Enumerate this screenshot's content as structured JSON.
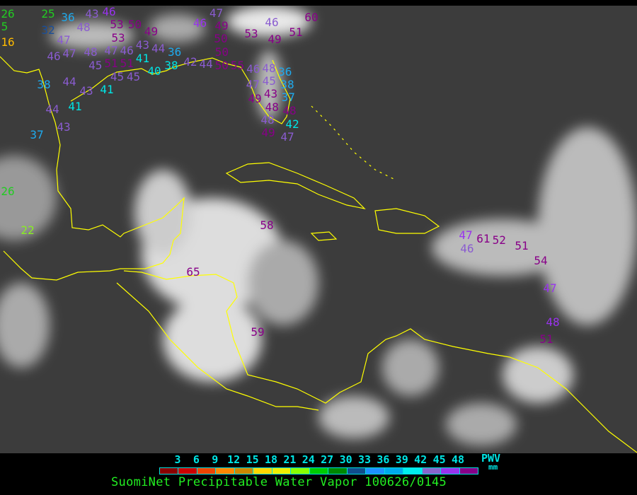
{
  "colors": {
    "background": "#3c3c3c",
    "coast": "#ffff00",
    "label_scale": "#00e5e5",
    "title": "#22ee22",
    "dark_purple": "#880088",
    "violet": "#8a5cd0",
    "purple": "#9933ee",
    "cyan": "#00e5e5",
    "light_blue": "#1eaaee",
    "dark_blue": "#1a4f9a",
    "green": "#22cc22",
    "yellow_green": "#88ee22",
    "orange": "#ffbb00"
  },
  "stations": [
    {
      "value": "26",
      "color": "green"
    },
    {
      "value": "25",
      "color": "green"
    },
    {
      "value": "36",
      "color": "light_blue"
    },
    {
      "value": "43",
      "color": "violet"
    },
    {
      "value": "46",
      "color": "purple"
    },
    {
      "value": "53",
      "color": "dark_purple"
    },
    {
      "value": "48",
      "color": "violet"
    },
    {
      "value": "53",
      "color": "dark_purple"
    },
    {
      "value": "50",
      "color": "dark_purple"
    },
    {
      "value": "32",
      "color": "dark_blue"
    },
    {
      "value": "5",
      "color": "green"
    },
    {
      "value": "16",
      "color": "orange"
    },
    {
      "value": "47",
      "color": "violet"
    },
    {
      "value": "47",
      "color": "violet"
    },
    {
      "value": "46",
      "color": "violet"
    },
    {
      "value": "49",
      "color": "dark_purple"
    },
    {
      "value": "43",
      "color": "violet"
    },
    {
      "value": "44",
      "color": "violet"
    },
    {
      "value": "46",
      "color": "violet"
    },
    {
      "value": "47",
      "color": "violet"
    },
    {
      "value": "48",
      "color": "violet"
    },
    {
      "value": "51",
      "color": "dark_purple"
    },
    {
      "value": "51",
      "color": "dark_purple"
    },
    {
      "value": "41",
      "color": "cyan"
    },
    {
      "value": "36",
      "color": "light_blue"
    },
    {
      "value": "45",
      "color": "violet"
    },
    {
      "value": "45",
      "color": "violet"
    },
    {
      "value": "45",
      "color": "violet"
    },
    {
      "value": "40",
      "color": "cyan"
    },
    {
      "value": "38",
      "color": "cyan"
    },
    {
      "value": "42",
      "color": "violet"
    },
    {
      "value": "44",
      "color": "violet"
    },
    {
      "value": "50",
      "color": "dark_purple"
    },
    {
      "value": "55",
      "color": "dark_purple"
    },
    {
      "value": "46",
      "color": "violet"
    },
    {
      "value": "48",
      "color": "violet"
    },
    {
      "value": "36",
      "color": "light_blue"
    },
    {
      "value": "47",
      "color": "violet"
    },
    {
      "value": "45",
      "color": "violet"
    },
    {
      "value": "38",
      "color": "light_blue"
    },
    {
      "value": "38",
      "color": "light_blue"
    },
    {
      "value": "44",
      "color": "violet"
    },
    {
      "value": "43",
      "color": "violet"
    },
    {
      "value": "41",
      "color": "cyan"
    },
    {
      "value": "44",
      "color": "violet"
    },
    {
      "value": "41",
      "color": "cyan"
    },
    {
      "value": "43",
      "color": "violet"
    },
    {
      "value": "37",
      "color": "light_blue"
    },
    {
      "value": "46",
      "color": "purple"
    },
    {
      "value": "47",
      "color": "violet"
    },
    {
      "value": "49",
      "color": "dark_purple"
    },
    {
      "value": "50",
      "color": "dark_purple"
    },
    {
      "value": "50",
      "color": "dark_purple"
    },
    {
      "value": "53",
      "color": "dark_purple"
    },
    {
      "value": "46",
      "color": "violet"
    },
    {
      "value": "49",
      "color": "dark_purple"
    },
    {
      "value": "51",
      "color": "dark_purple"
    },
    {
      "value": "60",
      "color": "dark_purple"
    },
    {
      "value": "49",
      "color": "dark_purple"
    },
    {
      "value": "43",
      "color": "dark_purple"
    },
    {
      "value": "37",
      "color": "light_blue"
    },
    {
      "value": "48",
      "color": "dark_purple"
    },
    {
      "value": "48",
      "color": "dark_purple"
    },
    {
      "value": "48",
      "color": "violet"
    },
    {
      "value": "49",
      "color": "dark_purple"
    },
    {
      "value": "42",
      "color": "cyan"
    },
    {
      "value": "47",
      "color": "violet"
    },
    {
      "value": "26",
      "color": "green"
    },
    {
      "value": "22",
      "color": "yellow_green"
    },
    {
      "value": "58",
      "color": "dark_purple"
    },
    {
      "value": "65",
      "color": "dark_purple"
    },
    {
      "value": "59",
      "color": "dark_purple"
    },
    {
      "value": "47",
      "color": "purple"
    },
    {
      "value": "46",
      "color": "violet"
    },
    {
      "value": "61",
      "color": "dark_purple"
    },
    {
      "value": "52",
      "color": "dark_purple"
    },
    {
      "value": "51",
      "color": "dark_purple"
    },
    {
      "value": "54",
      "color": "dark_purple"
    },
    {
      "value": "47",
      "color": "purple"
    },
    {
      "value": "48",
      "color": "purple"
    },
    {
      "value": "51",
      "color": "dark_purple"
    }
  ],
  "legend": {
    "ticks": [
      "3",
      "6",
      "9",
      "12",
      "15",
      "18",
      "21",
      "24",
      "27",
      "30",
      "33",
      "36",
      "39",
      "42",
      "45",
      "48"
    ],
    "scale_colors": [
      "#8b0000",
      "#cc0000",
      "#ee4400",
      "#ff8800",
      "#cc8800",
      "#ffd700",
      "#eeee00",
      "#88ff00",
      "#00cc00",
      "#008800",
      "#104e8b",
      "#1e90ff",
      "#00aaee",
      "#00eeee",
      "#8866cc",
      "#9933ee",
      "#880088"
    ],
    "unit_name": "PWV",
    "unit": "mm",
    "title": "SuomiNet Precipitable Water Vapor 100626/0145"
  }
}
